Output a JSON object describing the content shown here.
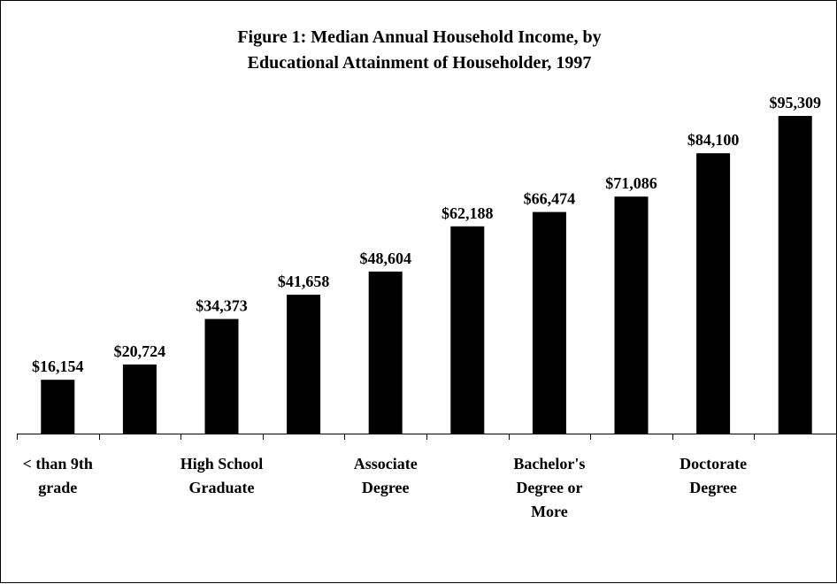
{
  "chart_data": {
    "type": "bar",
    "title": "Figure 1: Median Annual Household Income, by Educational Attainment of Householder, 1997",
    "title_lines": [
      "Figure 1: Median Annual Household Income, by",
      "Educational Attainment of Householder, 1997"
    ],
    "categories": [
      "< than 9th grade",
      "",
      "High School Graduate",
      "",
      "Associate Degree",
      "",
      "Bachelor's Degree or More",
      "",
      "Doctorate Degree",
      ""
    ],
    "category_label_lines": [
      [
        "< than 9th",
        "grade"
      ],
      [],
      [
        "High School",
        "Graduate"
      ],
      [],
      [
        "Associate",
        "Degree"
      ],
      [],
      [
        "Bachelor's",
        "Degree or",
        "More"
      ],
      [],
      [
        "Doctorate",
        "Degree"
      ],
      []
    ],
    "values": [
      16154,
      20724,
      34373,
      41658,
      48604,
      62188,
      66474,
      71086,
      84100,
      95309
    ],
    "data_labels": [
      "$16,154",
      "$20,724",
      "$34,373",
      "$41,658",
      "$48,604",
      "$62,188",
      "$66,474",
      "$71,086",
      "$84,100",
      "$95,309"
    ],
    "xlabel": "",
    "ylabel": "",
    "ylim": [
      0,
      100000
    ],
    "y_axis_visible": false,
    "grid": false,
    "legend": "none",
    "bar_color": "#000000",
    "background": "#ffffff"
  }
}
